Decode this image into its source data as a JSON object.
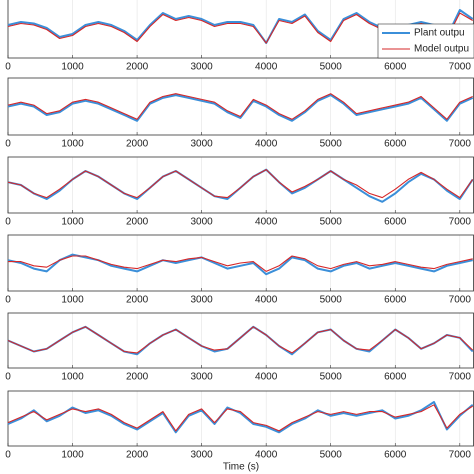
{
  "chart_data": [
    {
      "type": "line",
      "xlim": [
        0,
        7220
      ],
      "ylim": [
        -1,
        1
      ],
      "grid": true,
      "legend": "upper-right",
      "x": [
        0,
        200,
        400,
        600,
        800,
        1000,
        1200,
        1400,
        1600,
        1800,
        2000,
        2200,
        2400,
        2600,
        2800,
        3000,
        3200,
        3400,
        3600,
        3800,
        4000,
        4200,
        4400,
        4600,
        4800,
        5000,
        5200,
        5400,
        5600,
        5800,
        6000,
        6200,
        6400,
        6600,
        6800,
        7000,
        7200
      ],
      "xticks": [
        0,
        1000,
        2000,
        3000,
        4000,
        5000,
        6000,
        7000
      ],
      "series": [
        {
          "name": "Plant outpu",
          "color": "#3b8fd9",
          "values": [
            0.1,
            0.2,
            0.15,
            0.0,
            -0.3,
            -0.2,
            0.1,
            0.2,
            0.1,
            -0.1,
            -0.4,
            0.1,
            0.5,
            0.3,
            0.4,
            0.3,
            0.1,
            0.2,
            0.2,
            0.1,
            -0.5,
            0.3,
            0.2,
            0.45,
            -0.1,
            -0.4,
            0.3,
            0.5,
            0.2,
            0.0,
            -0.2,
            0.1,
            0.2,
            0.1,
            -0.3,
            0.6,
            0.3
          ]
        },
        {
          "name": "Model outpu",
          "color": "#d62728",
          "values": [
            0.05,
            0.15,
            0.1,
            -0.05,
            -0.35,
            -0.25,
            0.05,
            0.15,
            0.05,
            -0.15,
            -0.45,
            0.05,
            0.45,
            0.25,
            0.35,
            0.25,
            0.05,
            0.15,
            0.15,
            0.05,
            -0.5,
            0.25,
            0.15,
            0.4,
            -0.15,
            -0.45,
            0.25,
            0.45,
            0.15,
            -0.05,
            -0.25,
            0.05,
            0.15,
            0.05,
            -0.35,
            0.5,
            0.25
          ]
        }
      ]
    },
    {
      "type": "line",
      "xlim": [
        0,
        7220
      ],
      "ylim": [
        -1,
        1
      ],
      "grid": true,
      "x": [
        0,
        200,
        400,
        600,
        800,
        1000,
        1200,
        1400,
        1600,
        1800,
        2000,
        2200,
        2400,
        2600,
        2800,
        3000,
        3200,
        3400,
        3600,
        3800,
        4000,
        4200,
        4400,
        4600,
        4800,
        5000,
        5200,
        5400,
        5600,
        5800,
        6000,
        6200,
        6400,
        6600,
        6800,
        7000,
        7200
      ],
      "xticks": [
        0,
        1000,
        2000,
        3000,
        4000,
        5000,
        6000,
        7000
      ],
      "series": [
        {
          "name": "Plant outpu",
          "color": "#3b8fd9",
          "values": [
            0.0,
            0.1,
            0.0,
            -0.3,
            -0.2,
            0.1,
            0.2,
            0.1,
            -0.1,
            -0.3,
            -0.5,
            0.1,
            0.3,
            0.4,
            0.3,
            0.2,
            0.1,
            -0.2,
            -0.4,
            0.2,
            0.0,
            -0.3,
            -0.5,
            -0.2,
            0.2,
            0.4,
            0.1,
            -0.3,
            -0.2,
            -0.1,
            0.0,
            0.1,
            0.3,
            -0.1,
            -0.5,
            0.1,
            0.3
          ]
        },
        {
          "name": "Model outpu",
          "color": "#d62728",
          "values": [
            0.05,
            0.15,
            0.05,
            -0.25,
            -0.15,
            0.15,
            0.25,
            0.15,
            -0.05,
            -0.25,
            -0.45,
            0.15,
            0.35,
            0.45,
            0.35,
            0.25,
            0.15,
            -0.15,
            -0.35,
            0.25,
            0.05,
            -0.25,
            -0.45,
            -0.15,
            0.25,
            0.45,
            0.15,
            -0.25,
            -0.15,
            -0.05,
            0.05,
            0.15,
            0.35,
            -0.05,
            -0.45,
            0.15,
            0.35
          ]
        }
      ]
    },
    {
      "type": "line",
      "xlim": [
        0,
        7220
      ],
      "ylim": [
        -1,
        1
      ],
      "grid": true,
      "x": [
        0,
        200,
        400,
        600,
        800,
        1000,
        1200,
        1400,
        1600,
        1800,
        2000,
        2200,
        2400,
        2600,
        2800,
        3000,
        3200,
        3400,
        3600,
        3800,
        4000,
        4200,
        4400,
        4600,
        4800,
        5000,
        5200,
        5400,
        5600,
        5800,
        6000,
        6200,
        6400,
        6600,
        6800,
        7000,
        7200
      ],
      "xticks": [
        0,
        1000,
        2000,
        3000,
        4000,
        5000,
        6000,
        7000
      ],
      "series": [
        {
          "name": "Plant outpu",
          "color": "#3b8fd9",
          "values": [
            0.1,
            0.0,
            -0.3,
            -0.5,
            -0.2,
            0.2,
            0.5,
            0.3,
            0.0,
            -0.3,
            -0.5,
            -0.1,
            0.3,
            0.5,
            0.2,
            -0.1,
            -0.4,
            -0.5,
            -0.1,
            0.3,
            0.55,
            0.1,
            -0.3,
            -0.1,
            0.2,
            0.5,
            0.2,
            -0.1,
            -0.4,
            -0.6,
            -0.3,
            0.1,
            0.4,
            0.2,
            -0.2,
            -0.5,
            0.2
          ]
        },
        {
          "name": "Model outpu",
          "color": "#d62728",
          "values": [
            0.1,
            0.0,
            -0.3,
            -0.45,
            -0.15,
            0.2,
            0.5,
            0.3,
            0.0,
            -0.3,
            -0.45,
            -0.1,
            0.3,
            0.5,
            0.2,
            -0.1,
            -0.4,
            -0.45,
            -0.1,
            0.3,
            0.55,
            0.1,
            -0.25,
            -0.05,
            0.2,
            0.5,
            0.2,
            0.0,
            -0.3,
            -0.45,
            -0.15,
            0.2,
            0.45,
            0.2,
            -0.15,
            -0.45,
            0.2
          ]
        }
      ]
    },
    {
      "type": "line",
      "xlim": [
        0,
        7220
      ],
      "ylim": [
        -1,
        1
      ],
      "grid": true,
      "x": [
        0,
        200,
        400,
        600,
        800,
        1000,
        1200,
        1400,
        1600,
        1800,
        2000,
        2200,
        2400,
        2600,
        2800,
        3000,
        3200,
        3400,
        3600,
        3800,
        4000,
        4200,
        4400,
        4600,
        4800,
        5000,
        5200,
        5400,
        5600,
        5800,
        6000,
        6200,
        6400,
        6600,
        6800,
        7000,
        7200
      ],
      "xticks": [
        0,
        1000,
        2000,
        3000,
        4000,
        5000,
        6000,
        7000
      ],
      "series": [
        {
          "name": "Plant outpu",
          "color": "#3b8fd9",
          "values": [
            0.1,
            0.0,
            -0.2,
            -0.3,
            0.1,
            0.3,
            0.2,
            0.1,
            -0.1,
            -0.2,
            -0.3,
            -0.1,
            0.1,
            0.0,
            0.1,
            0.2,
            0.0,
            -0.2,
            -0.1,
            0.0,
            -0.4,
            -0.2,
            0.2,
            0.1,
            -0.2,
            -0.3,
            -0.1,
            0.0,
            -0.2,
            -0.1,
            0.0,
            -0.1,
            -0.2,
            -0.3,
            -0.1,
            0.0,
            0.1
          ]
        },
        {
          "name": "Model outpu",
          "color": "#d62728",
          "values": [
            0.05,
            0.05,
            -0.1,
            -0.15,
            0.1,
            0.25,
            0.25,
            0.1,
            -0.05,
            -0.15,
            -0.2,
            -0.05,
            0.1,
            0.05,
            0.15,
            0.2,
            0.05,
            -0.1,
            0.0,
            0.05,
            -0.3,
            -0.1,
            0.25,
            0.15,
            -0.1,
            -0.2,
            -0.05,
            0.05,
            -0.1,
            -0.05,
            0.05,
            -0.05,
            -0.15,
            -0.2,
            -0.05,
            0.05,
            0.15
          ]
        }
      ]
    },
    {
      "type": "line",
      "xlim": [
        0,
        7220
      ],
      "ylim": [
        -1,
        1
      ],
      "grid": true,
      "x": [
        0,
        200,
        400,
        600,
        800,
        1000,
        1200,
        1400,
        1600,
        1800,
        2000,
        2200,
        2400,
        2600,
        2800,
        3000,
        3200,
        3400,
        3600,
        3800,
        4000,
        4200,
        4400,
        4600,
        4800,
        5000,
        5200,
        5400,
        5600,
        5800,
        6000,
        6200,
        6400,
        6600,
        6800,
        7000,
        7200
      ],
      "xticks": [
        0,
        1000,
        2000,
        3000,
        4000,
        5000,
        6000,
        7000
      ],
      "series": [
        {
          "name": "Plant outpu",
          "color": "#3b8fd9",
          "values": [
            0.0,
            -0.2,
            -0.4,
            -0.3,
            0.0,
            0.3,
            0.5,
            0.2,
            -0.1,
            -0.4,
            -0.5,
            -0.1,
            0.2,
            0.4,
            0.1,
            -0.2,
            -0.4,
            -0.3,
            0.1,
            0.5,
            0.2,
            -0.2,
            -0.5,
            -0.1,
            0.3,
            0.4,
            0.0,
            -0.3,
            -0.4,
            0.0,
            0.4,
            0.1,
            -0.3,
            -0.1,
            0.2,
            0.1,
            -0.4
          ]
        },
        {
          "name": "Model outpu",
          "color": "#d62728",
          "values": [
            0.0,
            -0.2,
            -0.4,
            -0.3,
            0.0,
            0.3,
            0.5,
            0.2,
            -0.1,
            -0.4,
            -0.45,
            -0.1,
            0.2,
            0.4,
            0.1,
            -0.2,
            -0.35,
            -0.3,
            0.1,
            0.5,
            0.2,
            -0.2,
            -0.45,
            -0.1,
            0.3,
            0.4,
            0.0,
            -0.3,
            -0.35,
            0.0,
            0.4,
            0.1,
            -0.3,
            -0.1,
            0.2,
            0.1,
            -0.35
          ]
        }
      ]
    },
    {
      "type": "line",
      "xlim": [
        0,
        7220
      ],
      "ylim": [
        -1,
        1
      ],
      "grid": true,
      "xlabel": "Time (s)",
      "x": [
        0,
        200,
        400,
        600,
        800,
        1000,
        1200,
        1400,
        1600,
        1800,
        2000,
        2200,
        2400,
        2600,
        2800,
        3000,
        3200,
        3400,
        3600,
        3800,
        4000,
        4200,
        4400,
        4600,
        4800,
        5000,
        5200,
        5400,
        5600,
        5800,
        6000,
        6200,
        6400,
        6600,
        6800,
        7000,
        7200
      ],
      "xticks": [
        0,
        1000,
        2000,
        3000,
        4000,
        5000,
        6000,
        7000
      ],
      "series": [
        {
          "name": "Plant outpu",
          "color": "#3b8fd9",
          "values": [
            -0.2,
            0.0,
            0.3,
            -0.1,
            0.1,
            0.4,
            0.2,
            0.3,
            0.1,
            -0.2,
            -0.4,
            -0.1,
            0.2,
            -0.5,
            0.1,
            0.3,
            -0.2,
            0.4,
            0.2,
            -0.2,
            -0.3,
            -0.5,
            -0.2,
            0.0,
            0.3,
            0.1,
            0.2,
            0.1,
            0.2,
            0.3,
            0.0,
            0.1,
            0.3,
            0.6,
            -0.4,
            0.1,
            0.5
          ]
        },
        {
          "name": "Model outpu",
          "color": "#d62728",
          "values": [
            -0.15,
            0.05,
            0.25,
            -0.05,
            0.15,
            0.35,
            0.25,
            0.35,
            0.15,
            -0.15,
            -0.35,
            -0.05,
            0.25,
            -0.45,
            0.15,
            0.35,
            -0.15,
            0.35,
            0.25,
            -0.15,
            -0.25,
            -0.45,
            -0.15,
            0.05,
            0.25,
            0.15,
            0.25,
            0.15,
            0.25,
            0.25,
            0.05,
            0.15,
            0.25,
            0.5,
            -0.35,
            0.15,
            0.45
          ]
        }
      ]
    }
  ]
}
